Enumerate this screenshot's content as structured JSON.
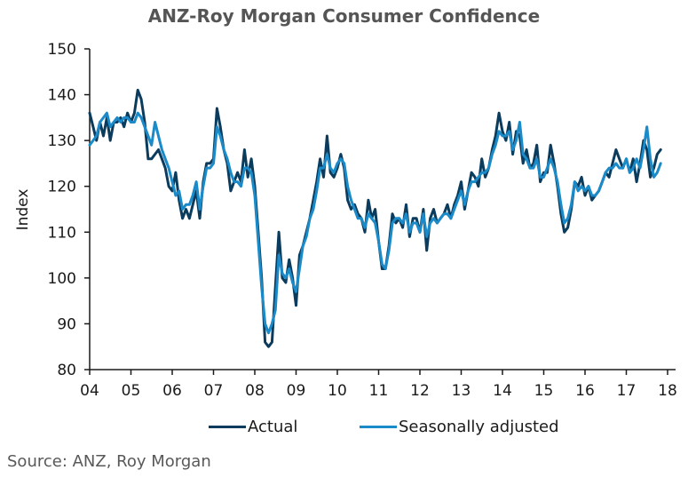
{
  "chart_data": {
    "type": "line",
    "title": "ANZ-Roy Morgan Consumer Confidence",
    "xlabel": "",
    "ylabel": "Index",
    "ylim": [
      80,
      150
    ],
    "yticks": [
      80,
      90,
      100,
      110,
      120,
      130,
      140,
      150
    ],
    "xlim": [
      2004,
      2018.25
    ],
    "xticks": [
      2004,
      2005,
      2006,
      2007,
      2008,
      2009,
      2010,
      2011,
      2012,
      2013,
      2014,
      2015,
      2016,
      2017,
      2018
    ],
    "xtick_labels": [
      "04",
      "05",
      "06",
      "07",
      "08",
      "09",
      "10",
      "11",
      "12",
      "13",
      "14",
      "15",
      "16",
      "17",
      "18"
    ],
    "x_start": 2004.0,
    "x_step": 0.08333,
    "grid": false,
    "legend_position": "bottom",
    "series": [
      {
        "name": "Actual",
        "color": "#0b3c5d",
        "values": [
          136,
          133,
          130,
          134,
          131,
          135,
          130,
          134,
          134,
          135,
          133,
          136,
          134,
          136,
          141,
          139,
          134,
          126,
          126,
          127,
          128,
          126,
          124,
          120,
          119,
          123,
          117,
          113,
          115,
          113,
          116,
          119,
          113,
          121,
          125,
          125,
          126,
          137,
          133,
          128,
          125,
          119,
          121,
          123,
          121,
          128,
          122,
          126,
          120,
          110,
          100,
          86,
          85,
          86,
          98,
          110,
          100,
          99,
          104,
          100,
          94,
          105,
          107,
          110,
          113,
          117,
          121,
          126,
          122,
          131,
          123,
          122,
          124,
          127,
          124,
          117,
          115,
          116,
          114,
          113,
          110,
          117,
          113,
          115,
          108,
          102,
          102,
          107,
          114,
          112,
          113,
          111,
          116,
          109,
          113,
          113,
          110,
          115,
          106,
          113,
          115,
          112,
          113,
          114,
          116,
          113,
          116,
          118,
          121,
          115,
          119,
          123,
          122,
          120,
          126,
          122,
          124,
          128,
          131,
          136,
          132,
          130,
          134,
          127,
          132,
          131,
          125,
          128,
          124,
          125,
          129,
          121,
          123,
          123,
          129,
          125,
          120,
          114,
          110,
          111,
          115,
          121,
          120,
          122,
          118,
          120,
          117,
          118,
          119,
          121,
          123,
          122,
          125,
          128,
          126,
          124,
          126,
          123,
          126,
          121,
          125,
          130,
          128,
          122,
          124,
          127,
          128
        ],
        "values_note": "approximate monthly readings from Jan 2004"
      },
      {
        "name": "Seasonally adjusted",
        "color": "#1a8ac9",
        "values": [
          129,
          130,
          131,
          134,
          135,
          136,
          133,
          134,
          135,
          134,
          135,
          135,
          134,
          134,
          136,
          135,
          133,
          131,
          129,
          134,
          131,
          128,
          126,
          124,
          121,
          118,
          119,
          115,
          116,
          116,
          118,
          121,
          115,
          120,
          124,
          124,
          125,
          133,
          131,
          128,
          126,
          123,
          121,
          121,
          120,
          124,
          124,
          123,
          118,
          108,
          98,
          90,
          88,
          90,
          93,
          105,
          101,
          100,
          102,
          99,
          97,
          102,
          107,
          109,
          113,
          115,
          119,
          124,
          124,
          127,
          124,
          123,
          125,
          126,
          125,
          120,
          117,
          115,
          113,
          113,
          111,
          114,
          113,
          112,
          108,
          103,
          102,
          106,
          112,
          113,
          113,
          112,
          114,
          110,
          112,
          112,
          110,
          114,
          109,
          112,
          113,
          112,
          113,
          114,
          114,
          113,
          115,
          117,
          119,
          116,
          119,
          121,
          121,
          122,
          123,
          123,
          124,
          127,
          129,
          132,
          131,
          131,
          132,
          128,
          130,
          134,
          127,
          126,
          124,
          124,
          126,
          122,
          122,
          124,
          126,
          124,
          121,
          116,
          112,
          113,
          116,
          121,
          119,
          120,
          119,
          120,
          118,
          118,
          119,
          121,
          123,
          124,
          124,
          125,
          124,
          124,
          126,
          123,
          124,
          126,
          124,
          128,
          133,
          126,
          122,
          123,
          125
        ],
        "values_note": "approximate monthly readings from Jan 2004"
      }
    ]
  },
  "legend": {
    "actual_label": "Actual",
    "sa_label": "Seasonally adjusted"
  },
  "source": "Source: ANZ, Roy Morgan"
}
